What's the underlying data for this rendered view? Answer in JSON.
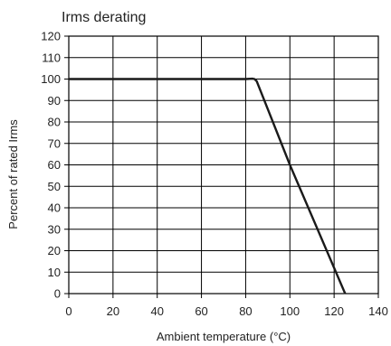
{
  "chart_data": {
    "type": "line",
    "title": "Irms derating",
    "xlabel": "Ambient temperature (°C)",
    "ylabel": "Percent of rated Irms",
    "xlim": [
      0,
      140
    ],
    "ylim": [
      0,
      120
    ],
    "xticks": [
      0,
      20,
      40,
      60,
      80,
      100,
      120,
      140
    ],
    "yticks": [
      0,
      10,
      20,
      30,
      40,
      50,
      60,
      70,
      80,
      90,
      100,
      110,
      120
    ],
    "grid": true,
    "line_color": "#1a1a1a",
    "series": [
      {
        "x": [
          0,
          80,
          83,
          84,
          85,
          100,
          125
        ],
        "y": [
          100,
          100,
          100.2,
          100,
          99,
          60,
          0
        ]
      }
    ]
  }
}
